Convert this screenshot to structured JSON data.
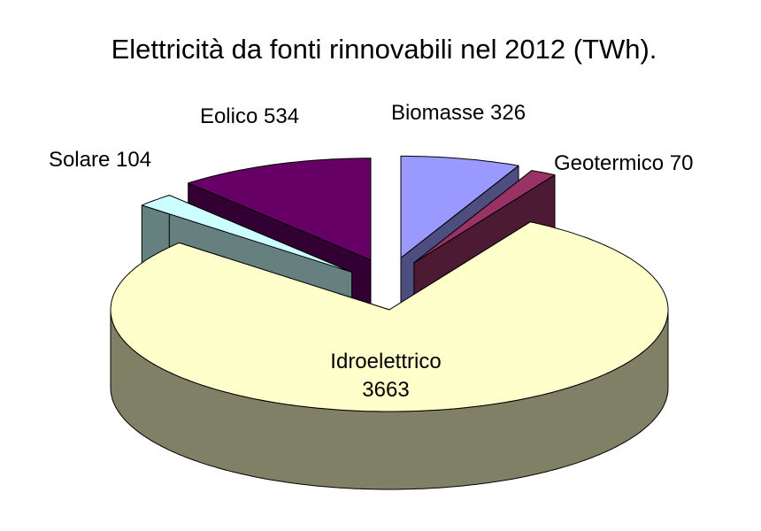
{
  "chart_data": {
    "type": "pie3d",
    "title": "Elettricità da fonti rinnovabili nel 2012 (TWh).",
    "categories": [
      "Biomasse",
      "Geotermico",
      "Idroelettrico",
      "Solare",
      "Eolico"
    ],
    "values": [
      326,
      70,
      3663,
      104,
      534
    ],
    "colors": [
      "#9999ff",
      "#993366",
      "#ffffcc",
      "#ccffff",
      "#660066"
    ]
  }
}
